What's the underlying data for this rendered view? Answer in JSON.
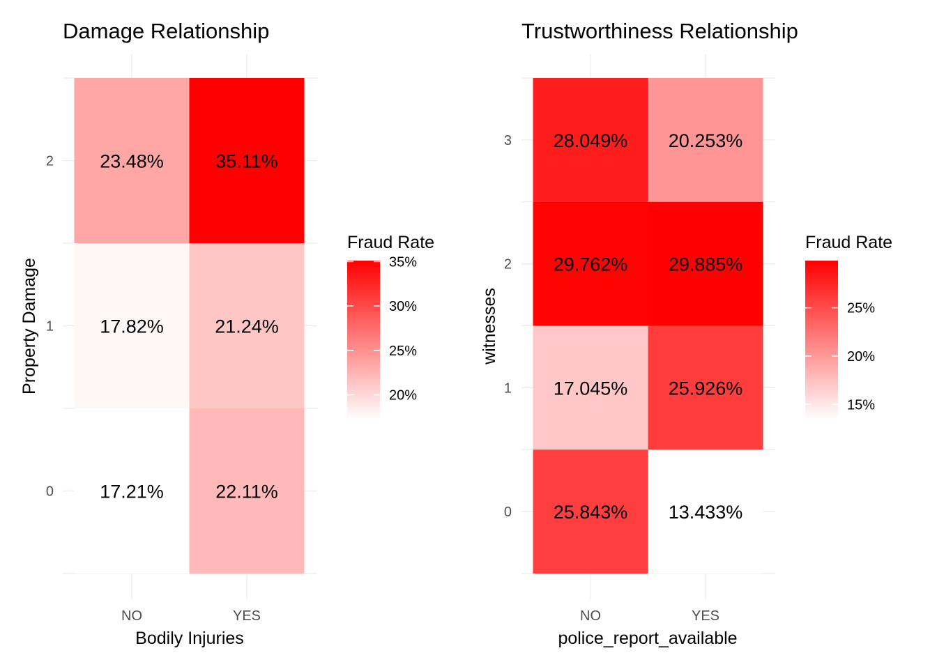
{
  "chart_data": [
    {
      "type": "heatmap",
      "title": "Damage Relationship",
      "xlabel": "Bodily Injuries",
      "ylabel": "Property Damage",
      "x_categories": [
        "NO",
        "YES"
      ],
      "y_categories": [
        "0",
        "1",
        "2"
      ],
      "cells": [
        {
          "x": "NO",
          "y": "2",
          "value": 23.48,
          "label": "23.48%"
        },
        {
          "x": "YES",
          "y": "2",
          "value": 35.11,
          "label": "35.11%"
        },
        {
          "x": "NO",
          "y": "1",
          "value": 17.82,
          "label": "17.82%"
        },
        {
          "x": "YES",
          "y": "1",
          "value": 21.24,
          "label": "21.24%"
        },
        {
          "x": "NO",
          "y": "0",
          "value": 17.21,
          "label": "17.21%"
        },
        {
          "x": "YES",
          "y": "0",
          "value": 22.11,
          "label": "22.11%"
        }
      ],
      "legend": {
        "title": "Fraud Rate",
        "ticks": [
          "20%",
          "25%",
          "30%",
          "35%"
        ],
        "tick_values": [
          20,
          25,
          30,
          35
        ],
        "range": [
          17.21,
          35.11
        ],
        "low_color": "#ffffff",
        "high_color": "#ff0000",
        "placement": "right"
      },
      "grid": true
    },
    {
      "type": "heatmap",
      "title": "Trustworthiness Relationship",
      "xlabel": "police_report_available",
      "ylabel": "witnesses",
      "x_categories": [
        "NO",
        "YES"
      ],
      "y_categories": [
        "0",
        "1",
        "2",
        "3"
      ],
      "cells": [
        {
          "x": "NO",
          "y": "3",
          "value": 28.049,
          "label": "28.049%"
        },
        {
          "x": "YES",
          "y": "3",
          "value": 20.253,
          "label": "20.253%"
        },
        {
          "x": "NO",
          "y": "2",
          "value": 29.762,
          "label": "29.762%"
        },
        {
          "x": "YES",
          "y": "2",
          "value": 29.885,
          "label": "29.885%"
        },
        {
          "x": "NO",
          "y": "1",
          "value": 17.045,
          "label": "17.045%"
        },
        {
          "x": "YES",
          "y": "1",
          "value": 25.926,
          "label": "25.926%"
        },
        {
          "x": "NO",
          "y": "0",
          "value": 25.843,
          "label": "25.843%"
        },
        {
          "x": "YES",
          "y": "0",
          "value": 13.433,
          "label": "13.433%"
        }
      ],
      "legend": {
        "title": "Fraud Rate",
        "ticks": [
          "15%",
          "20%",
          "25%"
        ],
        "tick_values": [
          15,
          20,
          25
        ],
        "range": [
          13.433,
          29.885
        ],
        "low_color": "#ffffff",
        "high_color": "#ff0000",
        "placement": "right"
      },
      "grid": true
    }
  ]
}
